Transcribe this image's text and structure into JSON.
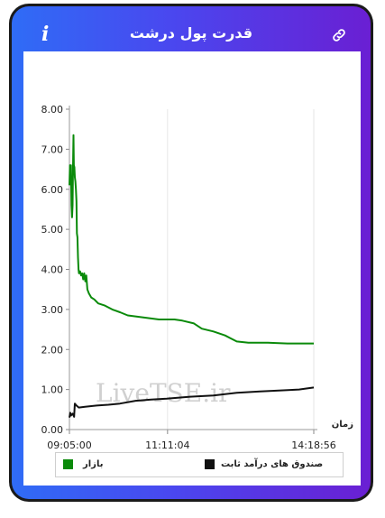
{
  "header": {
    "title": "قدرت پول درشت",
    "info_icon": "i"
  },
  "colors": {
    "market": "#0a8a0a",
    "fund": "#111111",
    "accent_start": "#2f6cf6",
    "accent_end": "#6a1fd3"
  },
  "chart_data": {
    "type": "line",
    "xlabel": "زمان",
    "ylabel": "",
    "ylim": [
      0,
      8
    ],
    "yticks": [
      "0.00",
      "1.00",
      "2.00",
      "3.00",
      "4.00",
      "5.00",
      "6.00",
      "7.00",
      "8.00"
    ],
    "xticks": [
      "09:05:00",
      "11:11:04",
      "14:18:56"
    ],
    "xlim": [
      "09:05:00",
      "14:18:56"
    ],
    "watermark": "LiveTSE.ir",
    "series": [
      {
        "name": "بازار",
        "color": "#0a8a0a",
        "points": [
          [
            "09:05:00",
            6.1
          ],
          [
            "09:05:40",
            6.6
          ],
          [
            "09:06:20",
            6.2
          ],
          [
            "09:07:00",
            6.6
          ],
          [
            "09:07:40",
            5.6
          ],
          [
            "09:08:20",
            5.3
          ],
          [
            "09:09:00",
            5.6
          ],
          [
            "09:09:40",
            6.6
          ],
          [
            "09:10:10",
            7.35
          ],
          [
            "09:10:40",
            6.6
          ],
          [
            "09:11:20",
            6.55
          ],
          [
            "09:12:00",
            6.3
          ],
          [
            "09:12:40",
            6.2
          ],
          [
            "09:13:20",
            6.0
          ],
          [
            "09:14:00",
            5.7
          ],
          [
            "09:14:40",
            4.9
          ],
          [
            "09:15:20",
            4.8
          ],
          [
            "09:16:00",
            4.3
          ],
          [
            "09:16:40",
            4.0
          ],
          [
            "09:17:20",
            3.9
          ],
          [
            "09:18:40",
            3.95
          ],
          [
            "09:20:00",
            3.85
          ],
          [
            "09:21:20",
            3.9
          ],
          [
            "09:22:40",
            3.75
          ],
          [
            "09:24:00",
            3.9
          ],
          [
            "09:25:20",
            3.7
          ],
          [
            "09:26:40",
            3.85
          ],
          [
            "09:28:00",
            3.5
          ],
          [
            "09:30:00",
            3.4
          ],
          [
            "09:33:00",
            3.3
          ],
          [
            "09:37:00",
            3.25
          ],
          [
            "09:42:00",
            3.15
          ],
          [
            "09:50:00",
            3.1
          ],
          [
            "10:00:00",
            3.0
          ],
          [
            "10:10:00",
            2.93
          ],
          [
            "10:20:00",
            2.85
          ],
          [
            "10:40:00",
            2.8
          ],
          [
            "11:00:00",
            2.75
          ],
          [
            "11:20:00",
            2.75
          ],
          [
            "11:30:00",
            2.72
          ],
          [
            "11:45:00",
            2.65
          ],
          [
            "11:55:00",
            2.52
          ],
          [
            "12:10:00",
            2.45
          ],
          [
            "12:25:00",
            2.35
          ],
          [
            "12:40:00",
            2.2
          ],
          [
            "12:55:00",
            2.17
          ],
          [
            "13:20:00",
            2.17
          ],
          [
            "13:45:00",
            2.15
          ],
          [
            "14:18:56",
            2.15
          ]
        ]
      },
      {
        "name": "صندوق های درآمد ثابت",
        "color": "#111111",
        "points": [
          [
            "09:05:00",
            0.3
          ],
          [
            "09:06:00",
            0.42
          ],
          [
            "09:07:00",
            0.35
          ],
          [
            "09:09:00",
            0.4
          ],
          [
            "09:11:00",
            0.32
          ],
          [
            "09:12:00",
            0.65
          ],
          [
            "09:14:00",
            0.6
          ],
          [
            "09:17:00",
            0.55
          ],
          [
            "09:25:00",
            0.57
          ],
          [
            "09:40:00",
            0.6
          ],
          [
            "09:55:00",
            0.62
          ],
          [
            "10:10:00",
            0.65
          ],
          [
            "10:30:00",
            0.72
          ],
          [
            "10:50:00",
            0.75
          ],
          [
            "11:10:00",
            0.77
          ],
          [
            "11:40:00",
            0.82
          ],
          [
            "12:10:00",
            0.85
          ],
          [
            "12:40:00",
            0.92
          ],
          [
            "13:10:00",
            0.95
          ],
          [
            "13:40:00",
            0.98
          ],
          [
            "14:00:00",
            1.0
          ],
          [
            "14:18:56",
            1.05
          ]
        ]
      }
    ],
    "legend": {
      "position": "bottom"
    }
  }
}
